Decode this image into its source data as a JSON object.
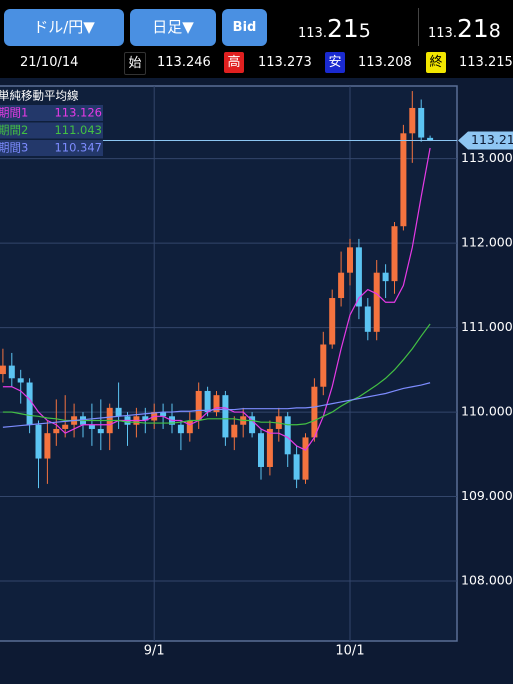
{
  "header": {
    "pair": "ドル/円▼",
    "period": "日足▼",
    "price_type": "Bid",
    "bid": {
      "prefix": "113.",
      "big": "21",
      "last": "5"
    },
    "ask": {
      "prefix": "113.",
      "big": "21",
      "last": "8"
    }
  },
  "ohlc_row": {
    "date": "21/10/14",
    "open_label": "始",
    "open": "113.246",
    "high_label": "高",
    "high": "113.273",
    "low_label": "安",
    "low": "113.208",
    "close_label": "終",
    "close": "113.215"
  },
  "chart_data": {
    "type": "candlestick",
    "categories": [
      null,
      null,
      null,
      null,
      null,
      null,
      null,
      null,
      null,
      null,
      null,
      null,
      null,
      null,
      null,
      null,
      null,
      "9/1",
      null,
      null,
      null,
      null,
      null,
      null,
      null,
      null,
      null,
      null,
      null,
      null,
      null,
      null,
      null,
      null,
      null,
      null,
      null,
      null,
      null,
      "10/1",
      null,
      null,
      null,
      null,
      null,
      null,
      null,
      null,
      null
    ],
    "open": [
      110.45,
      110.55,
      110.4,
      110.35,
      109.85,
      109.45,
      109.75,
      109.8,
      109.85,
      109.95,
      109.85,
      109.8,
      109.75,
      110.05,
      109.95,
      109.85,
      109.95,
      109.9,
      110.0,
      109.95,
      109.85,
      109.75,
      109.9,
      110.25,
      110.0,
      110.2,
      109.7,
      109.85,
      109.95,
      109.75,
      109.35,
      109.8,
      109.95,
      109.5,
      109.2,
      109.7,
      110.3,
      110.8,
      111.35,
      111.65,
      111.95,
      111.25,
      110.95,
      111.65,
      111.55,
      112.2,
      113.3,
      113.6,
      113.246
    ],
    "high": [
      110.75,
      110.7,
      110.5,
      110.4,
      109.9,
      109.9,
      110.15,
      110.2,
      110.1,
      110.0,
      110.1,
      110.15,
      110.1,
      110.35,
      110.0,
      110.05,
      110.05,
      110.1,
      110.1,
      110.1,
      109.9,
      110.0,
      110.35,
      110.3,
      110.25,
      110.25,
      109.95,
      110.05,
      110.0,
      109.8,
      109.9,
      110.05,
      110.0,
      109.6,
      109.75,
      110.4,
      110.95,
      111.45,
      111.9,
      112.05,
      112.05,
      111.35,
      111.8,
      111.75,
      112.25,
      113.4,
      113.8,
      113.7,
      113.273
    ],
    "low": [
      110.35,
      110.3,
      110.1,
      109.75,
      109.1,
      109.15,
      109.6,
      109.7,
      109.7,
      109.7,
      109.6,
      109.55,
      109.55,
      109.8,
      109.6,
      109.7,
      109.75,
      109.8,
      109.8,
      109.75,
      109.55,
      109.65,
      109.8,
      109.95,
      109.95,
      109.6,
      109.55,
      109.7,
      109.7,
      109.2,
      109.25,
      109.65,
      109.35,
      109.1,
      109.15,
      109.65,
      110.2,
      110.75,
      111.25,
      111.5,
      111.1,
      110.85,
      110.85,
      111.35,
      111.4,
      112.15,
      112.95,
      113.2,
      113.208
    ],
    "close": [
      110.55,
      110.4,
      110.35,
      109.85,
      109.45,
      109.75,
      109.8,
      109.85,
      109.95,
      109.85,
      109.8,
      109.75,
      110.05,
      109.95,
      109.85,
      109.95,
      109.9,
      110.0,
      109.95,
      109.85,
      109.75,
      109.9,
      110.25,
      110.0,
      110.2,
      109.7,
      109.85,
      109.95,
      109.75,
      109.35,
      109.8,
      109.95,
      109.5,
      109.2,
      109.7,
      110.3,
      110.8,
      111.35,
      111.65,
      111.95,
      111.25,
      110.95,
      111.65,
      111.55,
      112.2,
      113.3,
      113.6,
      113.25,
      113.215
    ],
    "up_color": "#f4733f",
    "down_color": "#5cc4f2",
    "legend_title": "単純移動平均線",
    "series": [
      {
        "name": "期間1",
        "color": "#e63ae6",
        "values": [
          110.3,
          110.3,
          110.25,
          110.15,
          110.0,
          109.9,
          109.85,
          109.75,
          109.8,
          109.85,
          109.85,
          109.85,
          109.85,
          109.9,
          109.9,
          109.9,
          109.9,
          109.95,
          109.95,
          109.9,
          109.9,
          109.85,
          109.9,
          110.0,
          110.05,
          110.05,
          110.0,
          110.0,
          109.9,
          109.8,
          109.75,
          109.75,
          109.7,
          109.6,
          109.55,
          109.7,
          109.95,
          110.3,
          110.75,
          111.15,
          111.35,
          111.45,
          111.4,
          111.3,
          111.3,
          111.5,
          111.95,
          112.55,
          113.126
        ]
      },
      {
        "name": "期間2",
        "color": "#43c043",
        "values": [
          110.0,
          110.0,
          109.98,
          109.96,
          109.95,
          109.93,
          109.92,
          109.9,
          109.9,
          109.9,
          109.9,
          109.9,
          109.9,
          109.9,
          109.88,
          109.88,
          109.87,
          109.87,
          109.87,
          109.87,
          109.88,
          109.9,
          109.9,
          109.92,
          109.92,
          109.92,
          109.92,
          109.9,
          109.9,
          109.88,
          109.88,
          109.87,
          109.85,
          109.85,
          109.86,
          109.9,
          109.95,
          110.0,
          110.07,
          110.13,
          110.18,
          110.25,
          110.32,
          110.4,
          110.5,
          110.62,
          110.75,
          110.9,
          111.043
        ]
      },
      {
        "name": "期間3",
        "color": "#7d8cff",
        "values": [
          109.82,
          109.83,
          109.84,
          109.85,
          109.86,
          109.87,
          109.88,
          109.89,
          109.9,
          109.91,
          109.92,
          109.93,
          109.94,
          109.95,
          109.96,
          109.97,
          109.98,
          109.99,
          110.0,
          110.0,
          110.01,
          110.01,
          110.02,
          110.02,
          110.03,
          110.03,
          110.03,
          110.04,
          110.04,
          110.04,
          110.04,
          110.04,
          110.04,
          110.05,
          110.05,
          110.06,
          110.08,
          110.1,
          110.12,
          110.14,
          110.16,
          110.18,
          110.2,
          110.22,
          110.25,
          110.28,
          110.3,
          110.32,
          110.347
        ]
      }
    ],
    "ylim": [
      107.29,
      113.86
    ],
    "yticks": [
      {
        "value": 108,
        "label": "108.000"
      },
      {
        "value": 109,
        "label": "109.000"
      },
      {
        "value": 110,
        "label": "110.000"
      },
      {
        "value": 111,
        "label": "111.000"
      },
      {
        "value": 112,
        "label": "112.000"
      },
      {
        "value": 113,
        "label": "113.000"
      }
    ],
    "grid": true,
    "current_price": {
      "value": 113.215,
      "label": "113.21"
    }
  }
}
